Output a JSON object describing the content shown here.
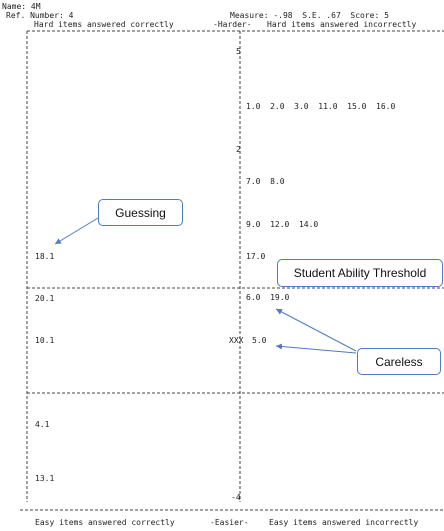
{
  "header": {
    "name_line": "Name: 4M",
    "ref_line": "Ref. Number: 4",
    "measure_line": "Measure: -.98  S.E. .67  Score: 5",
    "left_heading": "Hard items answered correctly",
    "center_top": "-Harder-",
    "right_heading": "Hard items answered incorrectly"
  },
  "scale": {
    "top": "5",
    "mid": "2",
    "bottom": "-4"
  },
  "left_items": [
    "18.1",
    "20.1",
    "10.1",
    "4.1",
    "13.1"
  ],
  "right_items": [
    "1.0  2.0  3.0  11.0  15.0  16.0",
    "7.0  8.0",
    "9.0  12.0  14.0",
    "17.0",
    "6.0  19.0",
    "5.0"
  ],
  "person_marker": "XXX",
  "callouts": {
    "guessing": "Guessing",
    "threshold": "Student Ability Threshold",
    "careless": "Careless"
  },
  "footer": {
    "left": "Easy items answered correctly",
    "center": "-Easier-",
    "right": "Easy items answered incorrectly"
  },
  "colors": {
    "arrow": "#4f7ac7",
    "callout_border": "#4f7ac7",
    "text": "#222222"
  }
}
